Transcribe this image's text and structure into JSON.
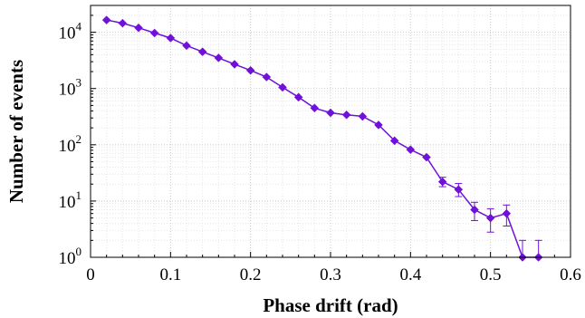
{
  "chart_data": {
    "type": "line",
    "xlabel": "Phase drift (rad)",
    "ylabel": "Number of events",
    "x_scale": "linear",
    "y_scale": "log",
    "xlim": [
      0,
      0.6
    ],
    "ylim": [
      1,
      30000
    ],
    "grid": true,
    "x_ticks": [
      {
        "v": 0,
        "label": "0"
      },
      {
        "v": 0.1,
        "label": "0.1"
      },
      {
        "v": 0.2,
        "label": "0.2"
      },
      {
        "v": 0.3,
        "label": "0.3"
      },
      {
        "v": 0.4,
        "label": "0.4"
      },
      {
        "v": 0.5,
        "label": "0.5"
      },
      {
        "v": 0.6,
        "label": "0.6"
      }
    ],
    "y_ticks": [
      {
        "v": 1,
        "base": "10",
        "exp": "0"
      },
      {
        "v": 10,
        "base": "10",
        "exp": "1"
      },
      {
        "v": 100,
        "base": "10",
        "exp": "2"
      },
      {
        "v": 1000,
        "base": "10",
        "exp": "3"
      },
      {
        "v": 10000,
        "base": "10",
        "exp": "4"
      }
    ],
    "color": "#7010d8",
    "series": [
      {
        "points": [
          {
            "x": 0.02,
            "y": 16500
          },
          {
            "x": 0.04,
            "y": 14500
          },
          {
            "x": 0.06,
            "y": 12000
          },
          {
            "x": 0.08,
            "y": 9700
          },
          {
            "x": 0.1,
            "y": 7900
          },
          {
            "x": 0.12,
            "y": 5800
          },
          {
            "x": 0.14,
            "y": 4500
          },
          {
            "x": 0.16,
            "y": 3500
          },
          {
            "x": 0.18,
            "y": 2700
          },
          {
            "x": 0.2,
            "y": 2100
          },
          {
            "x": 0.22,
            "y": 1600
          },
          {
            "x": 0.24,
            "y": 1050
          },
          {
            "x": 0.26,
            "y": 700
          },
          {
            "x": 0.28,
            "y": 450
          },
          {
            "x": 0.3,
            "y": 370
          },
          {
            "x": 0.32,
            "y": 340
          },
          {
            "x": 0.34,
            "y": 320
          },
          {
            "x": 0.36,
            "y": 225
          },
          {
            "x": 0.38,
            "y": 118
          },
          {
            "x": 0.4,
            "y": 82
          },
          {
            "x": 0.42,
            "y": 60
          },
          {
            "x": 0.44,
            "y": 22
          },
          {
            "x": 0.46,
            "y": 16
          },
          {
            "x": 0.48,
            "y": 7
          },
          {
            "x": 0.5,
            "y": 5
          },
          {
            "x": 0.52,
            "y": 6
          },
          {
            "x": 0.54,
            "y": 1
          },
          {
            "x": 0.56,
            "y": 1
          }
        ],
        "error_bars": [
          {
            "x": 0.44,
            "lo": 18,
            "hi": 26.5
          },
          {
            "x": 0.46,
            "lo": 12,
            "hi": 20.5
          },
          {
            "x": 0.48,
            "lo": 4.5,
            "hi": 9.5
          },
          {
            "x": 0.5,
            "lo": 2.8,
            "hi": 7.3
          },
          {
            "x": 0.52,
            "lo": 3.6,
            "hi": 8.5
          },
          {
            "x": 0.54,
            "lo": 1,
            "hi": 2
          },
          {
            "x": 0.56,
            "lo": 1,
            "hi": 2
          }
        ]
      }
    ]
  }
}
